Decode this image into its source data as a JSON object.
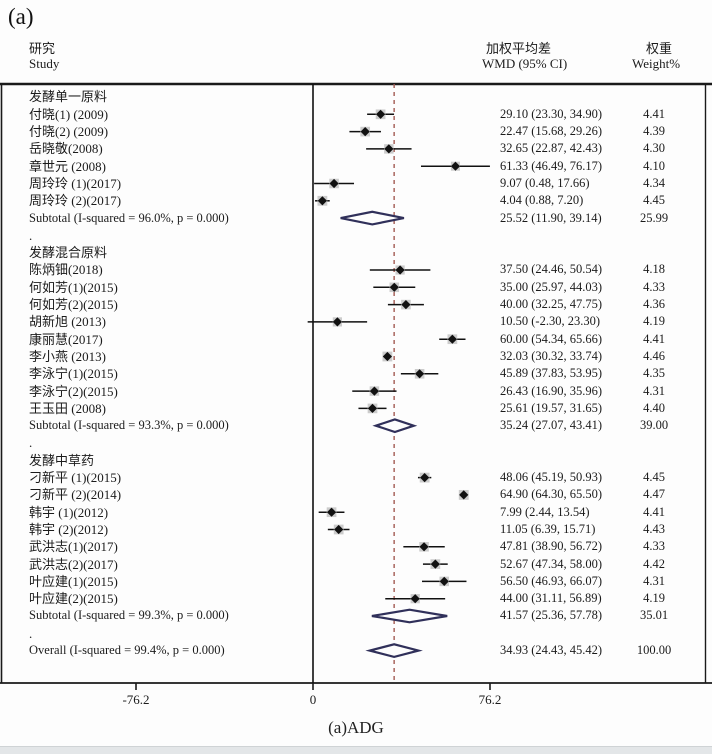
{
  "figure_label": "(a)",
  "header": {
    "study_zh": "研究",
    "study_en": "Study",
    "wmd_zh": "加权平均差",
    "wmd_en": "WMD (95% CI)",
    "weight_zh": "权重",
    "weight_en": "Weight%"
  },
  "axis": {
    "tick_labels": [
      "-76.2",
      "0",
      "76.2"
    ],
    "tick_values": [
      -76.2,
      0,
      76.2
    ],
    "caption": "(a)ADG"
  },
  "colors": {
    "text": "#1b1b1b",
    "line": "#111111",
    "frame": "#1a1a1a",
    "pooled_diamond": "#30305a",
    "null_line": "#111111",
    "overall_dashed_line": "#a25a52",
    "weight_box": "#c3c3c3"
  },
  "chart_data": {
    "type": "forest",
    "effect_measure": "WMD (95% CI)",
    "null_value": 0,
    "x_ticks": [
      -76.2,
      0,
      76.2
    ],
    "overall_line_at": 34.93,
    "groups": [
      {
        "name": "发酵单一原料",
        "studies": [
          {
            "label": "付晓(1) (2009)",
            "wmd": 29.1,
            "lo": 23.3,
            "hi": 34.9,
            "ci_text": "29.10 (23.30, 34.90)",
            "weight": 4.41,
            "weight_text": "4.41"
          },
          {
            "label": "付晓(2) (2009)",
            "wmd": 22.47,
            "lo": 15.68,
            "hi": 29.26,
            "ci_text": "22.47 (15.68, 29.26)",
            "weight": 4.39,
            "weight_text": "4.39"
          },
          {
            "label": "岳晓敬(2008)",
            "wmd": 32.65,
            "lo": 22.87,
            "hi": 42.43,
            "ci_text": "32.65 (22.87, 42.43)",
            "weight": 4.3,
            "weight_text": "4.30"
          },
          {
            "label": "章世元 (2008)",
            "wmd": 61.33,
            "lo": 46.49,
            "hi": 76.17,
            "ci_text": "61.33 (46.49, 76.17)",
            "weight": 4.1,
            "weight_text": "4.10"
          },
          {
            "label": "周玲玲 (1)(2017)",
            "wmd": 9.07,
            "lo": 0.48,
            "hi": 17.66,
            "ci_text": "9.07 (0.48, 17.66)",
            "weight": 4.34,
            "weight_text": "4.34"
          },
          {
            "label": "周玲玲 (2)(2017)",
            "wmd": 4.04,
            "lo": 0.88,
            "hi": 7.2,
            "ci_text": "4.04 (0.88, 7.20)",
            "weight": 4.45,
            "weight_text": "4.45"
          }
        ],
        "subtotal": {
          "label": "Subtotal  (I-squared = 96.0%, p = 0.000)",
          "wmd": 25.52,
          "lo": 11.9,
          "hi": 39.14,
          "ci_text": "25.52 (11.90, 39.14)",
          "weight_text": "25.99"
        }
      },
      {
        "name": "发酵混合原料",
        "studies": [
          {
            "label": "陈炳钿(2018)",
            "wmd": 37.5,
            "lo": 24.46,
            "hi": 50.54,
            "ci_text": "37.50 (24.46, 50.54)",
            "weight": 4.18,
            "weight_text": "4.18"
          },
          {
            "label": "何如芳(1)(2015)",
            "wmd": 35.0,
            "lo": 25.97,
            "hi": 44.03,
            "ci_text": "35.00 (25.97, 44.03)",
            "weight": 4.33,
            "weight_text": "4.33"
          },
          {
            "label": "何如芳(2)(2015)",
            "wmd": 40.0,
            "lo": 32.25,
            "hi": 47.75,
            "ci_text": "40.00 (32.25, 47.75)",
            "weight": 4.36,
            "weight_text": "4.36"
          },
          {
            "label": "胡新旭 (2013)",
            "wmd": 10.5,
            "lo": -2.3,
            "hi": 23.3,
            "ci_text": "10.50 (-2.30, 23.30)",
            "weight": 4.19,
            "weight_text": "4.19"
          },
          {
            "label": "康丽慧(2017)",
            "wmd": 60.0,
            "lo": 54.34,
            "hi": 65.66,
            "ci_text": "60.00 (54.34, 65.66)",
            "weight": 4.41,
            "weight_text": "4.41"
          },
          {
            "label": "李小燕 (2013)",
            "wmd": 32.03,
            "lo": 30.32,
            "hi": 33.74,
            "ci_text": "32.03 (30.32, 33.74)",
            "weight": 4.46,
            "weight_text": "4.46"
          },
          {
            "label": "李泳宁(1)(2015)",
            "wmd": 45.89,
            "lo": 37.83,
            "hi": 53.95,
            "ci_text": "45.89 (37.83, 53.95)",
            "weight": 4.35,
            "weight_text": "4.35"
          },
          {
            "label": "李泳宁(2)(2015)",
            "wmd": 26.43,
            "lo": 16.9,
            "hi": 35.96,
            "ci_text": "26.43 (16.90, 35.96)",
            "weight": 4.31,
            "weight_text": "4.31"
          },
          {
            "label": "王玉田 (2008)",
            "wmd": 25.61,
            "lo": 19.57,
            "hi": 31.65,
            "ci_text": "25.61 (19.57, 31.65)",
            "weight": 4.4,
            "weight_text": "4.40"
          }
        ],
        "subtotal": {
          "label": "Subtotal  (I-squared = 93.3%, p = 0.000)",
          "wmd": 35.24,
          "lo": 27.07,
          "hi": 43.41,
          "ci_text": "35.24 (27.07, 43.41)",
          "weight_text": "39.00"
        }
      },
      {
        "name": "发酵中草药",
        "studies": [
          {
            "label": "刁新平 (1)(2015)",
            "wmd": 48.06,
            "lo": 45.19,
            "hi": 50.93,
            "ci_text": "48.06 (45.19, 50.93)",
            "weight": 4.45,
            "weight_text": "4.45"
          },
          {
            "label": "刁新平 (2)(2014)",
            "wmd": 64.9,
            "lo": 64.3,
            "hi": 65.5,
            "ci_text": "64.90 (64.30, 65.50)",
            "weight": 4.47,
            "weight_text": "4.47"
          },
          {
            "label": "韩宇 (1)(2012)",
            "wmd": 7.99,
            "lo": 2.44,
            "hi": 13.54,
            "ci_text": "7.99 (2.44, 13.54)",
            "weight": 4.41,
            "weight_text": "4.41"
          },
          {
            "label": "韩宇 (2)(2012)",
            "wmd": 11.05,
            "lo": 6.39,
            "hi": 15.71,
            "ci_text": "11.05 (6.39, 15.71)",
            "weight": 4.43,
            "weight_text": "4.43"
          },
          {
            "label": "武洪志(1)(2017)",
            "wmd": 47.81,
            "lo": 38.9,
            "hi": 56.72,
            "ci_text": "47.81 (38.90, 56.72)",
            "weight": 4.33,
            "weight_text": "4.33"
          },
          {
            "label": "武洪志(2)(2017)",
            "wmd": 52.67,
            "lo": 47.34,
            "hi": 58.0,
            "ci_text": "52.67 (47.34, 58.00)",
            "weight": 4.42,
            "weight_text": "4.42"
          },
          {
            "label": "叶应建(1)(2015)",
            "wmd": 56.5,
            "lo": 46.93,
            "hi": 66.07,
            "ci_text": "56.50 (46.93, 66.07)",
            "weight": 4.31,
            "weight_text": "4.31"
          },
          {
            "label": "叶应建(2)(2015)",
            "wmd": 44.0,
            "lo": 31.11,
            "hi": 56.89,
            "ci_text": "44.00 (31.11, 56.89)",
            "weight": 4.19,
            "weight_text": "4.19"
          }
        ],
        "subtotal": {
          "label": "Subtotal  (I-squared = 99.3%, p = 0.000)",
          "wmd": 41.57,
          "lo": 25.36,
          "hi": 57.78,
          "ci_text": "41.57 (25.36, 57.78)",
          "weight_text": "35.01"
        }
      }
    ],
    "overall": {
      "label": "Overall  (I-squared = 99.4%, p = 0.000)",
      "wmd": 34.93,
      "lo": 24.43,
      "hi": 45.42,
      "ci_text": "34.93 (24.43, 45.42)",
      "weight_text": "100.00"
    }
  }
}
